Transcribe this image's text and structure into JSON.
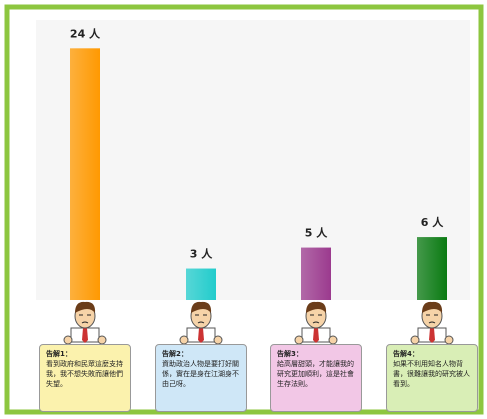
{
  "chart_data": {
    "type": "bar",
    "categories": [
      null,
      null,
      null,
      null
    ],
    "values": [
      24,
      3,
      5,
      6
    ],
    "value_labels": [
      "24 人",
      "3 人",
      "5 人",
      "6 人"
    ],
    "colors": [
      "#ff9900",
      "#22cccc",
      "#9b3a8e",
      "#0a7a12"
    ],
    "ylim": [
      0,
      26.7
    ],
    "notes": [
      {
        "title": "告解1：",
        "text": "看到政府和民眾這麼支持我，我不想失敗而讓他們失望。",
        "color": "#fbf2ad"
      },
      {
        "title": "告解2：",
        "text": "資助政治人物是要打好關係，實在是身在江湖身不由己呀。",
        "color": "#cfe7f7"
      },
      {
        "title": "告解3：",
        "text": "給高層甜頭，才能讓我的研究更加順利，這是社會生存法則。",
        "color": "#f2c7e6"
      },
      {
        "title": "告解4：",
        "text": "如果不利用知名人物背書，很難讓我的研究被人看到。",
        "color": "#d9eeb6"
      }
    ]
  }
}
